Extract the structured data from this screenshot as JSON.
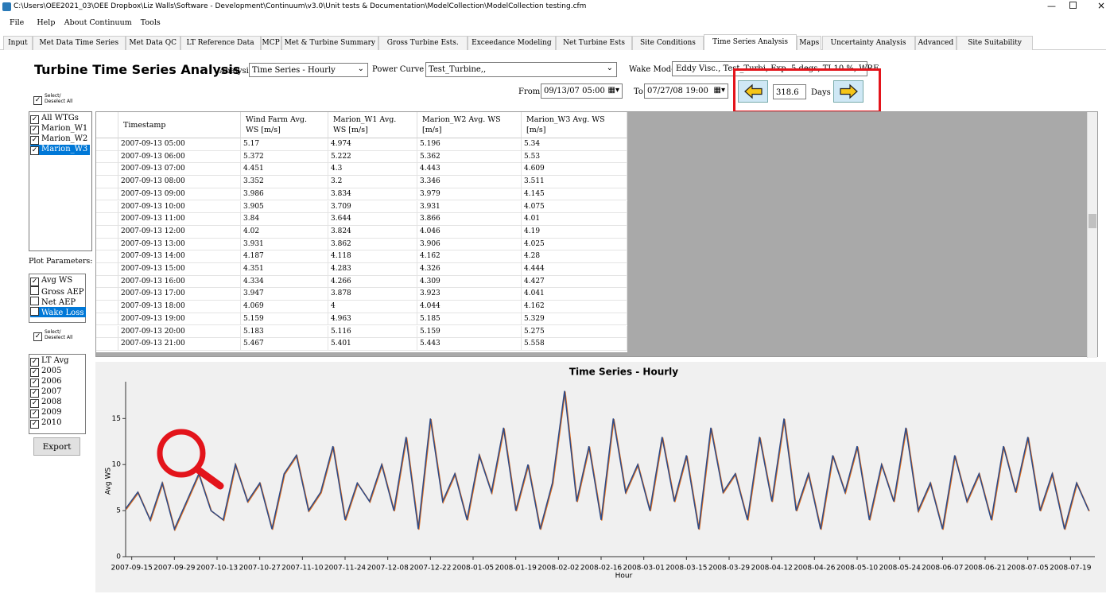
{
  "window": {
    "title": "C:\\Users\\OEE2021_03\\OEE Dropbox\\Liz Walls\\Software - Development\\Continuum\\v3.0\\Unit tests & Documentation\\ModelCollection\\ModelCollection testing.cfm"
  },
  "menu": [
    "File",
    "Help",
    "About Continuum",
    "Tools"
  ],
  "tabs": [
    "Input",
    "Met Data Time Series",
    "Met Data QC",
    "LT Reference Data",
    "MCP",
    "Met & Turbine Summary",
    "Gross Turbine Ests.",
    "Exceedance Modeling",
    "Net Turbine Ests",
    "Site Conditions",
    "Time Series Analysis",
    "Maps",
    "Uncertainty Analysis",
    "Advanced",
    "Site Suitability"
  ],
  "active_tab": 10,
  "header": {
    "title": "Turbine Time Series Analysis",
    "analysis_label": "Analysis :",
    "analysis_value": "Time Series - Hourly",
    "power_curve_label": "Power Curve :",
    "power_curve_value": "Test_Turbine,,",
    "wake_model_label": "Wake Model:",
    "wake_model_value": "Eddy Visc., Test_Turbi, Exp. 5 degs, TI 10 %, WRF",
    "from_label": "From",
    "from_value": "09/13/07 05:00",
    "to_label": "To",
    "to_value": "07/27/08 19:00",
    "days_value": "318.6",
    "days_label": "Days"
  },
  "left": {
    "select_all_1": "Select/\nDeselect All",
    "wtgs": [
      {
        "label": "All WTGs",
        "checked": true
      },
      {
        "label": "Marion_W1",
        "checked": true
      },
      {
        "label": "Marion_W2",
        "checked": true
      },
      {
        "label": "Marion_W3",
        "checked": true,
        "selected": true
      }
    ],
    "plot_parameters_label": "Plot Parameters:",
    "params": [
      {
        "label": "Avg WS",
        "checked": true
      },
      {
        "label": "Gross AEP",
        "checked": false
      },
      {
        "label": "Net AEP",
        "checked": false
      },
      {
        "label": "Wake Loss",
        "checked": false,
        "selected": true
      }
    ],
    "select_all_2": "Select/\nDeselect All",
    "years": [
      {
        "label": "LT Avg",
        "checked": true
      },
      {
        "label": "2005",
        "checked": true
      },
      {
        "label": "2006",
        "checked": true
      },
      {
        "label": "2007",
        "checked": true
      },
      {
        "label": "2008",
        "checked": true
      },
      {
        "label": "2009",
        "checked": true
      },
      {
        "label": "2010",
        "checked": true
      }
    ],
    "export": "Export"
  },
  "table": {
    "headers": [
      "Timestamp",
      "Wind Farm Avg.\nWS [m/s]",
      "Marion_W1 Avg.\nWS [m/s]",
      "Marion_W2 Avg. WS\n[m/s]",
      "Marion_W3 Avg. WS\n[m/s]"
    ],
    "rows": [
      [
        "2007-09-13 05:00",
        5.17,
        4.974,
        5.196,
        5.34
      ],
      [
        "2007-09-13 06:00",
        5.372,
        5.222,
        5.362,
        5.53
      ],
      [
        "2007-09-13 07:00",
        4.451,
        4.3,
        4.443,
        4.609
      ],
      [
        "2007-09-13 08:00",
        3.352,
        3.2,
        3.346,
        3.511
      ],
      [
        "2007-09-13 09:00",
        3.986,
        3.834,
        3.979,
        4.145
      ],
      [
        "2007-09-13 10:00",
        3.905,
        3.709,
        3.931,
        4.075
      ],
      [
        "2007-09-13 11:00",
        3.84,
        3.644,
        3.866,
        4.01
      ],
      [
        "2007-09-13 12:00",
        4.02,
        3.824,
        4.046,
        4.19
      ],
      [
        "2007-09-13 13:00",
        3.931,
        3.862,
        3.906,
        4.025
      ],
      [
        "2007-09-13 14:00",
        4.187,
        4.118,
        4.162,
        4.28
      ],
      [
        "2007-09-13 15:00",
        4.351,
        4.283,
        4.326,
        4.444
      ],
      [
        "2007-09-13 16:00",
        4.334,
        4.266,
        4.309,
        4.427
      ],
      [
        "2007-09-13 17:00",
        3.947,
        3.878,
        3.923,
        4.041
      ],
      [
        "2007-09-13 18:00",
        4.069,
        4,
        4.044,
        4.162
      ],
      [
        "2007-09-13 19:00",
        5.159,
        4.963,
        5.185,
        5.329
      ],
      [
        "2007-09-13 20:00",
        5.183,
        5.116,
        5.159,
        5.275
      ],
      [
        "2007-09-13 21:00",
        5.467,
        5.401,
        5.443,
        5.558
      ]
    ]
  },
  "chart_data": {
    "type": "line",
    "title": "Time Series - Hourly",
    "x_label": "Hour",
    "y_label": "Avg WS",
    "color": "#2e4a86",
    "x": [
      "2007-09-13",
      "2007-09-17",
      "2007-09-21",
      "2007-09-25",
      "2007-09-29",
      "2007-10-03",
      "2007-10-07",
      "2007-10-11",
      "2007-10-15",
      "2007-10-19",
      "2007-10-23",
      "2007-10-27",
      "2007-10-31",
      "2007-11-04",
      "2007-11-08",
      "2007-11-12",
      "2007-11-16",
      "2007-11-20",
      "2007-11-24",
      "2007-11-28",
      "2007-12-02",
      "2007-12-06",
      "2007-12-10",
      "2007-12-14",
      "2007-12-18",
      "2007-12-22",
      "2007-12-26",
      "2007-12-30",
      "2008-01-03",
      "2008-01-07",
      "2008-01-11",
      "2008-01-15",
      "2008-01-19",
      "2008-01-23",
      "2008-01-27",
      "2008-01-31",
      "2008-02-04",
      "2008-02-08",
      "2008-02-12",
      "2008-02-16",
      "2008-02-20",
      "2008-02-24",
      "2008-02-28",
      "2008-03-03",
      "2008-03-07",
      "2008-03-11",
      "2008-03-15",
      "2008-03-19",
      "2008-03-23",
      "2008-03-27",
      "2008-03-31",
      "2008-04-04",
      "2008-04-08",
      "2008-04-12",
      "2008-04-16",
      "2008-04-20",
      "2008-04-24",
      "2008-04-28",
      "2008-05-02",
      "2008-05-06",
      "2008-05-10",
      "2008-05-14",
      "2008-05-18",
      "2008-05-22",
      "2008-05-26",
      "2008-05-30",
      "2008-06-03",
      "2008-06-07",
      "2008-06-11",
      "2008-06-15",
      "2008-06-19",
      "2008-06-23",
      "2008-06-27",
      "2008-07-01",
      "2008-07-05",
      "2008-07-09",
      "2008-07-13",
      "2008-07-17",
      "2008-07-21",
      "2008-07-25"
    ],
    "values": [
      5.2,
      7,
      4,
      8,
      3,
      6,
      9,
      5,
      4,
      10,
      6,
      8,
      3,
      9,
      11,
      5,
      7,
      12,
      4,
      8,
      6,
      10,
      5,
      13,
      3,
      15,
      6,
      9,
      4,
      11,
      7,
      14,
      5,
      10,
      3,
      8,
      18,
      6,
      12,
      4,
      15,
      7,
      10,
      5,
      13,
      6,
      11,
      3,
      14,
      7,
      9,
      4,
      13,
      6,
      15,
      5,
      9,
      3,
      11,
      7,
      12,
      4,
      10,
      6,
      14,
      5,
      8,
      3,
      11,
      6,
      9,
      4,
      12,
      7,
      13,
      5,
      9,
      3,
      8,
      5
    ],
    "xlim": [
      "2007-09-13",
      "2008-07-27"
    ],
    "xticks": [
      "2007-09-15",
      "2007-09-29",
      "2007-10-13",
      "2007-10-27",
      "2007-11-10",
      "2007-11-24",
      "2007-12-08",
      "2007-12-22",
      "2008-01-05",
      "2008-01-19",
      "2008-02-02",
      "2008-02-16",
      "2008-03-01",
      "2008-03-15",
      "2008-03-29",
      "2008-04-12",
      "2008-04-26",
      "2008-05-10",
      "2008-05-24",
      "2008-06-07",
      "2008-06-21",
      "2008-07-05",
      "2008-07-19"
    ],
    "ylim": [
      0,
      19
    ],
    "yticks": [
      0,
      5,
      10,
      15
    ]
  }
}
